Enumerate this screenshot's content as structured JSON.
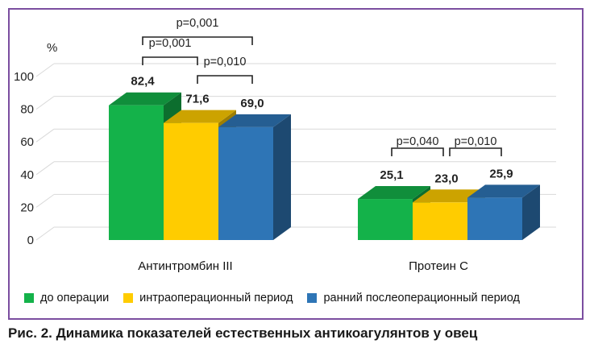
{
  "chart_data": {
    "type": "bar",
    "unit_label": "%",
    "ylim": [
      0,
      100
    ],
    "y_ticks": [
      "0",
      "20",
      "40",
      "60",
      "80",
      "100"
    ],
    "categories": [
      "Антинтромбин III",
      "Протеин С"
    ],
    "series": [
      {
        "name": "до операции",
        "color": "#14b24a",
        "values": [
          82.4,
          25.1
        ],
        "labels": [
          "82,4",
          "25,1"
        ]
      },
      {
        "name": "интраоперационный период",
        "color": "#ffcc00",
        "values": [
          71.6,
          23.0
        ],
        "labels": [
          "71,6",
          "23,0"
        ]
      },
      {
        "name": "ранний послеоперационный период",
        "color": "#2e75b6",
        "values": [
          69.0,
          25.9
        ],
        "labels": [
          "69,0",
          "25,9"
        ]
      }
    ],
    "significance": [
      {
        "category": 0,
        "from": 0,
        "to": 2,
        "label": "p=0,001"
      },
      {
        "category": 0,
        "from": 0,
        "to": 1,
        "label": "p=0,001"
      },
      {
        "category": 0,
        "from": 1,
        "to": 2,
        "label": "p=0,010"
      },
      {
        "category": 1,
        "from": 0,
        "to": 1,
        "label": "p=0,040"
      },
      {
        "category": 1,
        "from": 1,
        "to": 2,
        "label": "p=0,010"
      }
    ],
    "grid": true,
    "legend_position": "bottom"
  },
  "caption": "Рис. 2. Динамика показателей естественных антикоагулянтов у овец"
}
